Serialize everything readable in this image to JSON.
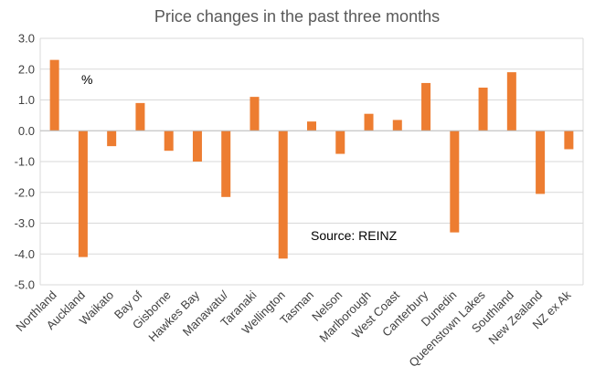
{
  "chart_data": {
    "type": "bar",
    "title": "Price changes in the past three months",
    "unit_label": "%",
    "source_note": "Source: REINZ",
    "categories": [
      "Northland",
      "Auckland",
      "Waikato",
      "Bay of",
      "Gisborne",
      "Hawkes Bay",
      "Manawatu/",
      "Taranaki",
      "Wellington",
      "Tasman",
      "Nelson",
      "Marlborough",
      "West Coast",
      "Canterbury",
      "Dunedin",
      "Queenstown Lakes",
      "Southland",
      "New Zealand",
      "NZ ex Ak"
    ],
    "values": [
      2.3,
      -4.1,
      -0.5,
      0.9,
      -0.65,
      -1.0,
      -2.15,
      1.1,
      -4.15,
      0.3,
      -0.75,
      0.55,
      0.35,
      1.55,
      -3.3,
      1.4,
      1.9,
      -2.05,
      -0.6
    ],
    "y_ticks": [
      "3.0",
      "2.0",
      "1.0",
      "0.0",
      "-1.0",
      "-2.0",
      "-3.0",
      "-4.0",
      "-5.0"
    ],
    "ylim": [
      -5,
      3
    ],
    "grid": "horizontal",
    "legend": "none",
    "bar_color": "#ED7D31",
    "grid_color": "#D9D9D9"
  }
}
